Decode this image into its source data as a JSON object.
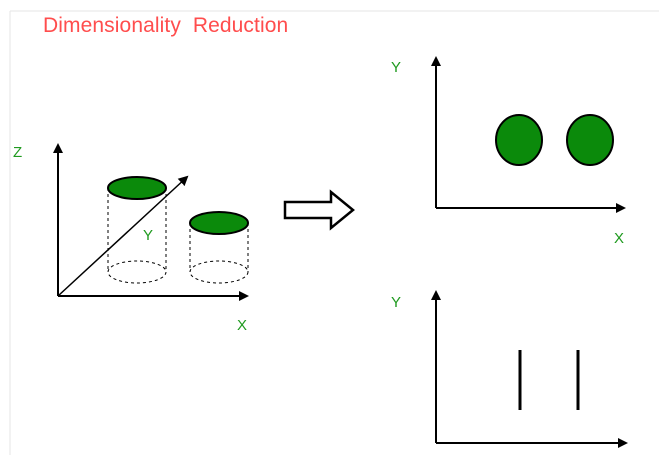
{
  "title": "Dimensionality  Reduction",
  "colors": {
    "title": "#ff4d4d",
    "axis_label": "#1f9a1f",
    "blob_fill": "#0b8a0b",
    "outline": "#000000"
  },
  "left_diagram": {
    "axis_labels": {
      "z": "Z",
      "y": "Y",
      "x": "X"
    }
  },
  "top_right_diagram": {
    "axis_labels": {
      "y": "Y",
      "x": "X"
    }
  },
  "bottom_right_diagram": {
    "axis_labels": {
      "y": "Y"
    }
  },
  "transform_arrow": {
    "icon": "right-arrow-icon"
  }
}
